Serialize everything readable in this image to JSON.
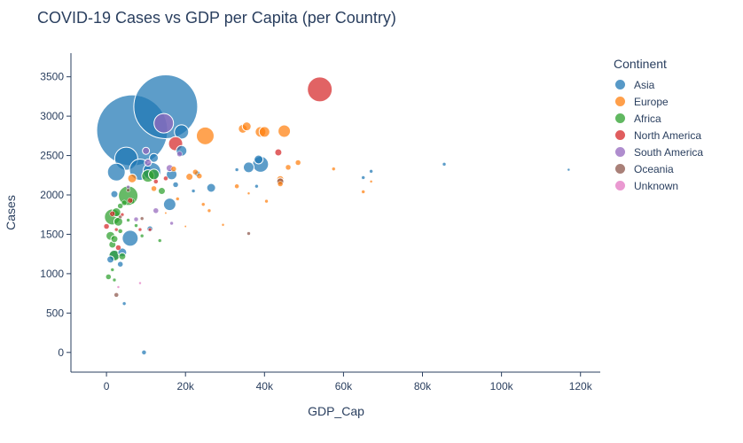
{
  "chart_data": {
    "type": "scatter",
    "title": "COVID-19 Cases vs GDP per Capita (per Country)",
    "xlabel": "GDP_Cap",
    "ylabel": "Cases",
    "xlim": [
      -9000,
      125000
    ],
    "ylim": [
      -250,
      3800
    ],
    "x_ticks": [
      {
        "v": 0,
        "label": "0"
      },
      {
        "v": 20000,
        "label": "20k"
      },
      {
        "v": 40000,
        "label": "40k"
      },
      {
        "v": 60000,
        "label": "60k"
      },
      {
        "v": 80000,
        "label": "80k"
      },
      {
        "v": 100000,
        "label": "100k"
      },
      {
        "v": 120000,
        "label": "120k"
      }
    ],
    "y_ticks": [
      0,
      500,
      1000,
      1500,
      2000,
      2500,
      3000,
      3500
    ],
    "grid": false,
    "legend_title": "Continent",
    "legend_position": "top-right",
    "series": [
      {
        "name": "Asia",
        "color": "#1f77b4",
        "points": [
          [
            15000,
            3120,
            36
          ],
          [
            6500,
            2820,
            40
          ],
          [
            5000,
            2460,
            13
          ],
          [
            2500,
            2290,
            10
          ],
          [
            8500,
            2320,
            12
          ],
          [
            11500,
            2300,
            10
          ],
          [
            19000,
            2800,
            8
          ],
          [
            19000,
            2560,
            6
          ],
          [
            16500,
            2260,
            6
          ],
          [
            12000,
            2470,
            5
          ],
          [
            16000,
            1880,
            7
          ],
          [
            6000,
            1450,
            9
          ],
          [
            2000,
            1240,
            6
          ],
          [
            4000,
            1270,
            5
          ],
          [
            1000,
            1180,
            4
          ],
          [
            26500,
            2090,
            5
          ],
          [
            36000,
            2350,
            6
          ],
          [
            38500,
            2450,
            5
          ],
          [
            39000,
            2390,
            9
          ],
          [
            33000,
            2320,
            2
          ],
          [
            38000,
            2110,
            2
          ],
          [
            65000,
            2220,
            2
          ],
          [
            67000,
            2300,
            2
          ],
          [
            85500,
            2390,
            2
          ],
          [
            117000,
            2320,
            1.5
          ],
          [
            9500,
            0,
            2.5
          ],
          [
            4500,
            620,
            2
          ],
          [
            3500,
            1120,
            3
          ],
          [
            11000,
            1570,
            3
          ],
          [
            2000,
            2010,
            4
          ],
          [
            17500,
            2130,
            3
          ],
          [
            22000,
            2050,
            2
          ],
          [
            23000,
            2270,
            3
          ]
        ]
      },
      {
        "name": "Europe",
        "color": "#ff7f0e",
        "points": [
          [
            25000,
            2750,
            10
          ],
          [
            34500,
            2840,
            5
          ],
          [
            35500,
            2870,
            5
          ],
          [
            39000,
            2800,
            6
          ],
          [
            40000,
            2800,
            6
          ],
          [
            45000,
            2810,
            7
          ],
          [
            46000,
            2350,
            3
          ],
          [
            48500,
            2410,
            3
          ],
          [
            57500,
            2330,
            2
          ],
          [
            65000,
            2040,
            2
          ],
          [
            67000,
            2170,
            1.5
          ],
          [
            44000,
            2200,
            4
          ],
          [
            44000,
            2140,
            3
          ],
          [
            40500,
            1920,
            2
          ],
          [
            33000,
            2110,
            2.5
          ],
          [
            26000,
            1800,
            2
          ],
          [
            24500,
            1880,
            2
          ],
          [
            21000,
            2230,
            4
          ],
          [
            22500,
            2290,
            3
          ],
          [
            23500,
            2240,
            3
          ],
          [
            17000,
            2330,
            3
          ],
          [
            12000,
            2080,
            3
          ],
          [
            18000,
            1950,
            2
          ],
          [
            6500,
            2210,
            5
          ],
          [
            29500,
            1620,
            1.5
          ],
          [
            36000,
            2020,
            1.5
          ],
          [
            20000,
            1600,
            1.2
          ],
          [
            15000,
            1770,
            1.2
          ]
        ]
      },
      {
        "name": "Africa",
        "color": "#2ca02c",
        "points": [
          [
            5500,
            1990,
            11
          ],
          [
            1500,
            1720,
            9
          ],
          [
            3000,
            1660,
            5
          ],
          [
            2500,
            1780,
            5
          ],
          [
            10500,
            2240,
            7
          ],
          [
            12000,
            2260,
            6
          ],
          [
            14000,
            2050,
            4
          ],
          [
            2000,
            1230,
            6
          ],
          [
            4000,
            1220,
            4
          ],
          [
            1000,
            1480,
            5
          ],
          [
            1500,
            1370,
            4
          ],
          [
            2000,
            1440,
            4
          ],
          [
            3500,
            1860,
            3
          ],
          [
            4500,
            1900,
            3
          ],
          [
            6500,
            1920,
            3
          ],
          [
            500,
            960,
            3
          ],
          [
            1500,
            1050,
            2
          ],
          [
            3500,
            1540,
            2.5
          ],
          [
            7500,
            1610,
            2
          ],
          [
            13500,
            1420,
            2
          ],
          [
            9000,
            1480,
            2
          ],
          [
            2000,
            920,
            2
          ],
          [
            5500,
            1680,
            2
          ]
        ]
      },
      {
        "name": "North America",
        "color": "#d62728",
        "points": [
          [
            54000,
            3340,
            14
          ],
          [
            17500,
            2650,
            8
          ],
          [
            43500,
            2540,
            4
          ],
          [
            6000,
            1930,
            3
          ],
          [
            3000,
            1330,
            3
          ],
          [
            0,
            1600,
            3
          ],
          [
            1500,
            1760,
            3
          ],
          [
            8500,
            1560,
            2
          ],
          [
            11000,
            1560,
            2
          ],
          [
            2500,
            1560,
            2
          ],
          [
            15000,
            2210,
            2.5
          ],
          [
            12500,
            2170,
            2.5
          ],
          [
            4000,
            1750,
            2
          ]
        ]
      },
      {
        "name": "South America",
        "color": "#9467bd",
        "points": [
          [
            14500,
            2910,
            11
          ],
          [
            16000,
            2340,
            4
          ],
          [
            10000,
            2560,
            4
          ],
          [
            10500,
            2410,
            4
          ],
          [
            18500,
            2520,
            3
          ],
          [
            12500,
            1800,
            3
          ],
          [
            7500,
            1690,
            2.5
          ],
          [
            16500,
            1640,
            2
          ],
          [
            5500,
            2100,
            2
          ]
        ]
      },
      {
        "name": "Oceania",
        "color": "#8c564b",
        "points": [
          [
            44000,
            2170,
            4
          ],
          [
            2500,
            730,
            2.5
          ],
          [
            36000,
            1510,
            2
          ],
          [
            3500,
            1720,
            2
          ],
          [
            5500,
            2060,
            2
          ],
          [
            9000,
            1700,
            2
          ]
        ]
      },
      {
        "name": "Unknown",
        "color": "#e377c2",
        "points": [
          [
            3000,
            830,
            1.5
          ],
          [
            8500,
            880,
            1.5
          ]
        ]
      }
    ]
  }
}
